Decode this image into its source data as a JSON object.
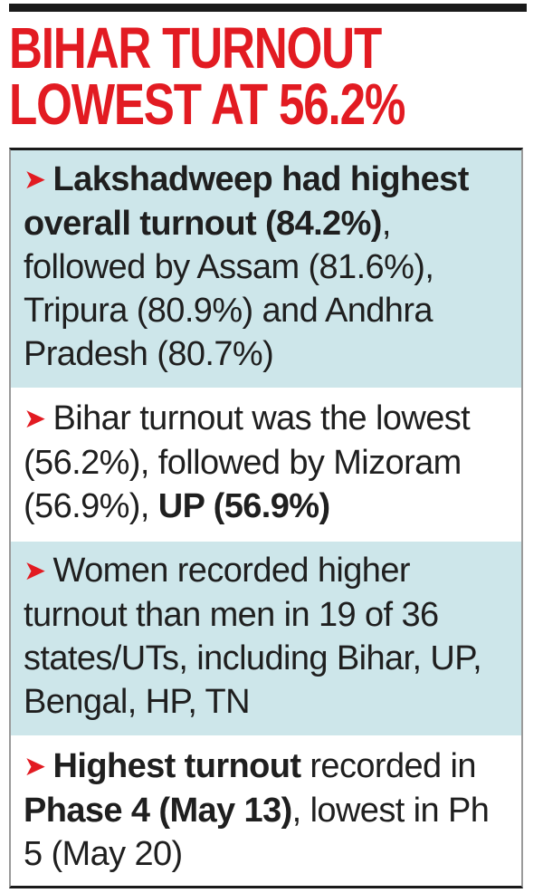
{
  "headline": {
    "line1": "BIHAR TURNOUT",
    "line2": "LOWEST AT 56.2%"
  },
  "colors": {
    "headline_red": "#e21b22",
    "shaded_row": "#cde6ea",
    "text": "#1f1f1f"
  },
  "arrow_icon": "red-arrowhead-icon",
  "items": [
    {
      "bold": "Lakshadweep had highest overall turnout (84.2%)",
      "text": ", followed by Assam (81.6%), Tripura (80.9%) and Andhra Pradesh (80.7%)"
    },
    {
      "text": "Bihar turnout was the lowest (56.2%), followed by Mizoram (56.9%), ",
      "bold": "UP (56.9%)"
    },
    {
      "text": "Women recorded higher turnout than men in 19 of 36 states/UTs, including Bihar, UP, Bengal, HP, TN"
    },
    {
      "bold1": "Highest turnout",
      "text1": " recorded in ",
      "bold2": "Phase 4 (May 13)",
      "text2": ", lowest in Ph 5 (May 20)"
    }
  ]
}
